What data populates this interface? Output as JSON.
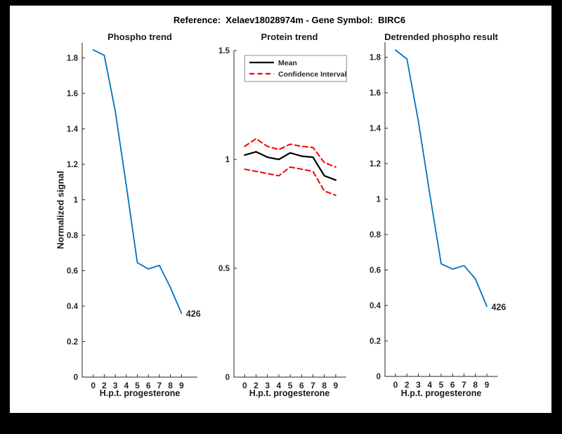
{
  "header": {
    "title": "Reference:  Xelaev18028974m - Gene Symbol:  BIRC6"
  },
  "chart_data": [
    {
      "type": "line",
      "title": "Phospho trend",
      "xlabel": "H.p.t. progesterone",
      "ylabel": "Normalized signal",
      "x_tick_labels": [
        "0",
        "2",
        "3",
        "4",
        "5",
        "6",
        "7",
        "8",
        "9"
      ],
      "ylim": [
        0,
        1.885
      ],
      "yticks": [
        0,
        0.2,
        0.4,
        0.6,
        0.8,
        1,
        1.2,
        1.4,
        1.6,
        1.8
      ],
      "ytick_labels": [
        "0",
        "0.2",
        "0.4",
        "0.6",
        "0.8",
        "1",
        "1.2",
        "1.4",
        "1.6",
        "1.8"
      ],
      "grid": false,
      "series": [
        {
          "name": "phospho",
          "color": "#0072BD",
          "dash": false,
          "values": [
            1.845,
            1.815,
            1.5,
            1.08,
            0.645,
            0.61,
            0.63,
            0.505,
            0.36
          ]
        }
      ],
      "annotation": {
        "text": "426"
      }
    },
    {
      "type": "line",
      "title": "Protein trend",
      "xlabel": "H.p.t. progesterone",
      "ylabel": "",
      "x_tick_labels": [
        "0",
        "2",
        "3",
        "4",
        "5",
        "6",
        "7",
        "8",
        "9"
      ],
      "ylim": [
        0,
        1.5
      ],
      "yticks": [
        0,
        0.5,
        1,
        1.5
      ],
      "ytick_labels": [
        "0",
        "0.5",
        "1",
        "1.5"
      ],
      "grid": false,
      "legend": {
        "position": "northwest",
        "entries": [
          {
            "label": "Mean",
            "color": "#000000",
            "dash": false
          },
          {
            "label": "Confidence Interval",
            "color": "#f40000",
            "dash": true
          }
        ]
      },
      "series": [
        {
          "name": "mean",
          "color": "#000000",
          "dash": false,
          "values": [
            1.02,
            1.035,
            1.01,
            1.0,
            1.03,
            1.015,
            1.01,
            0.925,
            0.905
          ]
        },
        {
          "name": "ci-upper",
          "color": "#f40000",
          "dash": true,
          "values": [
            1.06,
            1.095,
            1.06,
            1.045,
            1.07,
            1.06,
            1.055,
            0.985,
            0.965
          ]
        },
        {
          "name": "ci-lower",
          "color": "#f40000",
          "dash": true,
          "values": [
            0.955,
            0.945,
            0.935,
            0.925,
            0.965,
            0.955,
            0.945,
            0.855,
            0.835
          ]
        }
      ]
    },
    {
      "type": "line",
      "title": "Detrended phospho result",
      "xlabel": "H.p.t. progesterone",
      "ylabel": "",
      "x_tick_labels": [
        "0",
        "2",
        "3",
        "4",
        "5",
        "6",
        "7",
        "8",
        "9"
      ],
      "ylim": [
        0,
        1.885
      ],
      "yticks": [
        0,
        0.2,
        0.4,
        0.6,
        0.8,
        1,
        1.2,
        1.4,
        1.6,
        1.8
      ],
      "ytick_labels": [
        "0",
        "0.2",
        "0.4",
        "0.6",
        "0.8",
        "1",
        "1.2",
        "1.4",
        "1.6",
        "1.8"
      ],
      "grid": false,
      "series": [
        {
          "name": "detrended-phospho",
          "color": "#0072BD",
          "dash": false,
          "values": [
            1.84,
            1.79,
            1.44,
            1.03,
            0.635,
            0.605,
            0.625,
            0.55,
            0.395
          ]
        }
      ],
      "annotation": {
        "text": "426"
      }
    }
  ]
}
